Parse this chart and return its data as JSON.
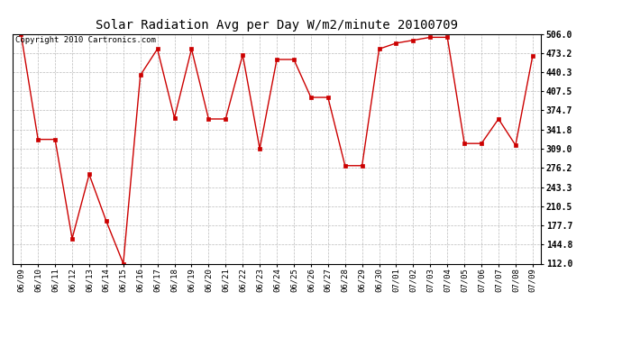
{
  "title": "Solar Radiation Avg per Day W/m2/minute 20100709",
  "copyright": "Copyright 2010 Cartronics.com",
  "dates": [
    "06/09",
    "06/10",
    "06/11",
    "06/12",
    "06/13",
    "06/14",
    "06/15",
    "06/16",
    "06/17",
    "06/18",
    "06/19",
    "06/20",
    "06/21",
    "06/22",
    "06/23",
    "06/24",
    "06/25",
    "06/26",
    "06/27",
    "06/28",
    "06/29",
    "06/30",
    "07/01",
    "07/02",
    "07/03",
    "07/04",
    "07/05",
    "07/06",
    "07/07",
    "07/08",
    "07/09"
  ],
  "values": [
    506.0,
    325.0,
    325.0,
    155.0,
    265.0,
    185.0,
    112.0,
    435.0,
    480.0,
    362.0,
    480.0,
    360.0,
    360.0,
    470.0,
    309.0,
    462.0,
    462.0,
    397.0,
    397.0,
    280.0,
    280.0,
    480.0,
    490.0,
    495.0,
    500.0,
    500.0,
    318.0,
    318.0,
    360.0,
    315.0,
    468.0
  ],
  "line_color": "#cc0000",
  "marker_color": "#cc0000",
  "bg_color": "#ffffff",
  "grid_color": "#bbbbbb",
  "yticks": [
    112.0,
    144.8,
    177.7,
    210.5,
    243.3,
    276.2,
    309.0,
    341.8,
    374.7,
    407.5,
    440.3,
    473.2,
    506.0
  ],
  "ylim": [
    112.0,
    506.0
  ],
  "title_fontsize": 10,
  "copyright_fontsize": 6.5,
  "tick_fontsize": 6.5,
  "ytick_fontsize": 7.0
}
